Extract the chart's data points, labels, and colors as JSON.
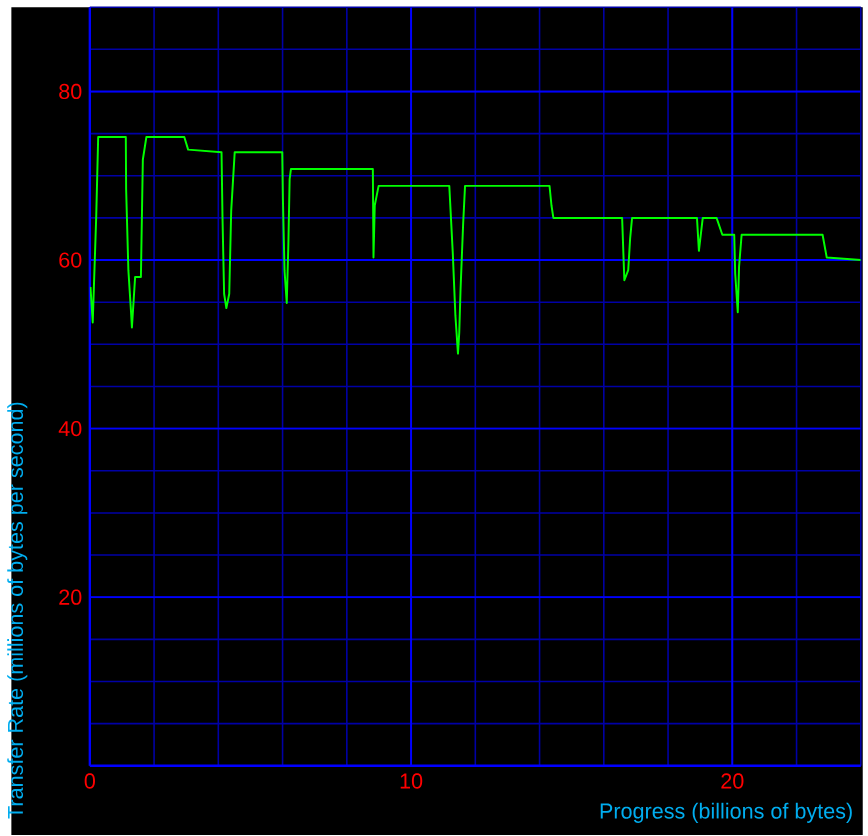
{
  "chart_data": {
    "type": "line",
    "xlabel": "Progress (billions of bytes)",
    "ylabel": "Transfer Rate (millions of bytes per second)",
    "x": [
      0.02,
      0.09,
      0.2,
      0.26,
      1.12,
      1.13,
      1.2,
      1.28,
      1.31,
      1.41,
      1.59,
      1.65,
      1.76,
      2.94,
      3.06,
      4.1,
      4.13,
      4.18,
      4.25,
      4.34,
      4.4,
      4.51,
      5.99,
      6.01,
      6.06,
      6.13,
      6.18,
      6.22,
      6.26,
      8.81,
      8.83,
      8.87,
      8.99,
      11.19,
      11.3,
      11.38,
      11.46,
      11.5,
      11.54,
      11.62,
      11.68,
      14.31,
      14.37,
      14.43,
      16.57,
      16.61,
      16.64,
      16.76,
      16.82,
      16.88,
      18.9,
      18.96,
      19.08,
      19.51,
      19.69,
      20.06,
      20.09,
      20.17,
      20.21,
      20.29,
      22.81,
      22.94,
      24.0
    ],
    "series": [
      {
        "color": "#00ff00",
        "values": [
          56.8,
          52.6,
          65.3,
          74.6,
          74.6,
          68.4,
          58.8,
          54,
          52,
          58,
          58,
          71.9,
          74.6,
          74.6,
          73.1,
          72.8,
          65,
          56,
          54.3,
          56,
          65.8,
          72.8,
          72.8,
          67.3,
          58.8,
          54.9,
          61.9,
          69.6,
          70.8,
          70.8,
          60.3,
          66.5,
          68.8,
          68.8,
          60.7,
          53.4,
          48.9,
          51.4,
          56.5,
          64.2,
          68.8,
          68.8,
          66.5,
          65,
          65,
          60.7,
          57.6,
          58.8,
          62.6,
          65,
          65,
          61.1,
          65,
          65,
          63,
          63,
          58.4,
          53.8,
          59.2,
          63,
          63,
          60.3,
          60
        ]
      }
    ],
    "xlim": [
      0,
      24
    ],
    "ylim": [
      0,
      90
    ],
    "xticks": [
      0,
      {
        "value": 2,
        "label": null
      },
      {
        "value": 4,
        "label": null
      },
      {
        "value": 6,
        "label": null
      },
      {
        "value": 8,
        "label": null
      },
      10,
      {
        "value": 12,
        "label": null
      },
      {
        "value": 14,
        "label": null
      },
      {
        "value": 16,
        "label": null
      },
      {
        "value": 18,
        "label": null
      },
      20,
      {
        "value": 22,
        "label": null
      },
      {
        "value": 24,
        "label": null
      }
    ],
    "yticks": [
      {
        "value": 5,
        "label": null
      },
      {
        "value": 10,
        "label": null
      },
      {
        "value": 15,
        "label": null
      },
      20,
      {
        "value": 25,
        "label": null
      },
      {
        "value": 30,
        "label": null
      },
      {
        "value": 35,
        "label": null
      },
      40,
      {
        "value": 45,
        "label": null
      },
      {
        "value": 50,
        "label": null
      },
      {
        "value": 55,
        "label": null
      },
      60,
      {
        "value": 65,
        "label": null
      },
      {
        "value": 70,
        "label": null
      },
      {
        "value": 75,
        "label": null
      },
      80,
      {
        "value": 85,
        "label": null
      },
      {
        "value": 90,
        "label": null
      }
    ],
    "grid": true
  }
}
